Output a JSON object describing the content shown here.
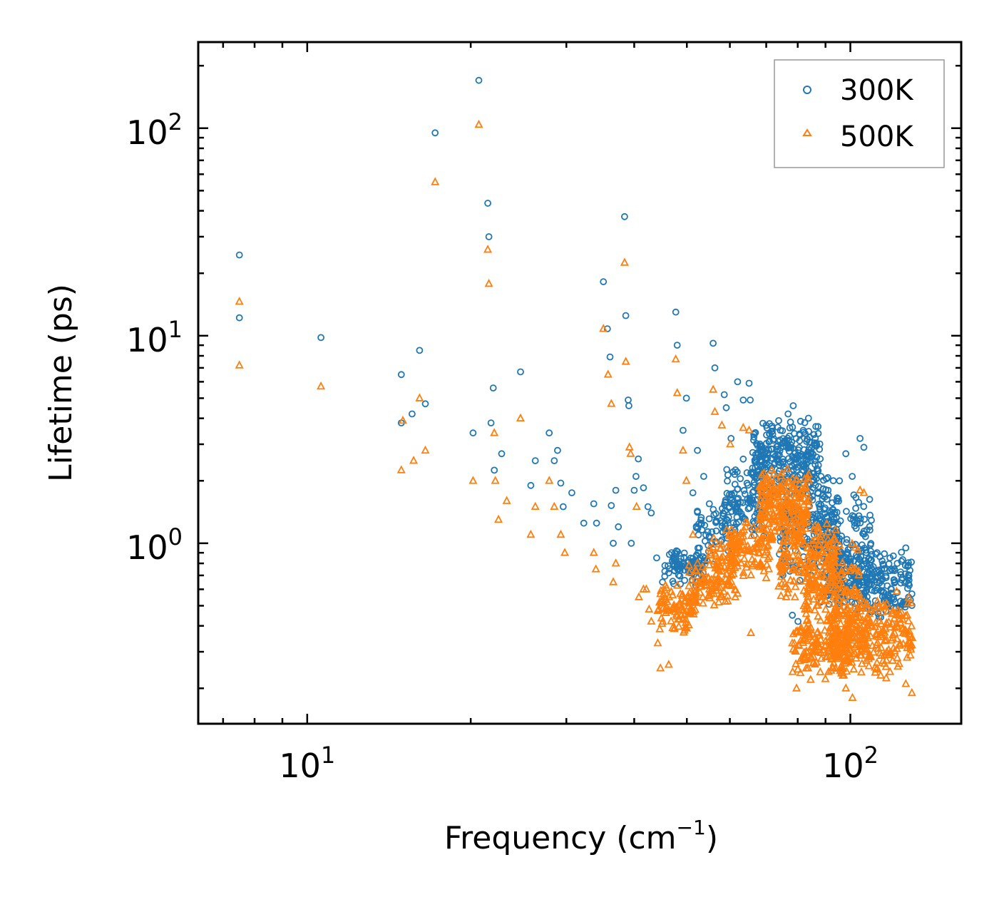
{
  "chart_data": {
    "type": "scatter",
    "x_scale": "log",
    "y_scale": "log",
    "xlabel": "Frequency (cm",
    "xlabel_sup": "−1",
    "xlabel_suffix": ")",
    "ylabel": "Lifetime (ps)",
    "xlim": [
      6.3,
      160
    ],
    "ylim": [
      0.135,
      260
    ],
    "x_ticks": [
      {
        "value": 10,
        "base": "10",
        "exp": "1"
      },
      {
        "value": 100,
        "base": "10",
        "exp": "2"
      }
    ],
    "y_ticks": [
      {
        "value": 1,
        "base": "10",
        "exp": "0"
      },
      {
        "value": 10,
        "base": "10",
        "exp": "1"
      },
      {
        "value": 100,
        "base": "10",
        "exp": "2"
      }
    ],
    "legend_position": "top-right",
    "series": [
      {
        "name": "300K",
        "marker": "circle",
        "color": "#1f77b4",
        "points": [
          [
            7.5,
            24.5
          ],
          [
            7.5,
            12.2
          ],
          [
            10.6,
            9.8
          ],
          [
            14.9,
            6.5
          ],
          [
            14.9,
            3.8
          ],
          [
            15.6,
            4.2
          ],
          [
            16.1,
            8.5
          ],
          [
            16.5,
            4.7
          ],
          [
            17.2,
            95
          ],
          [
            20.2,
            3.4
          ],
          [
            20.7,
            170
          ],
          [
            21.5,
            43.5
          ],
          [
            21.6,
            30
          ],
          [
            21.8,
            3.8
          ],
          [
            22.0,
            5.6
          ],
          [
            22.1,
            2.25
          ],
          [
            22.8,
            2.7
          ],
          [
            24.7,
            6.7
          ],
          [
            25.8,
            1.9
          ],
          [
            26.3,
            2.5
          ],
          [
            27.9,
            3.4
          ],
          [
            28.5,
            2.5
          ],
          [
            28.9,
            2.8
          ],
          [
            29.3,
            1.95
          ],
          [
            29.6,
            1.5
          ],
          [
            30.7,
            1.75
          ],
          [
            32.3,
            1.25
          ],
          [
            33.7,
            1.55
          ],
          [
            34.1,
            1.25
          ],
          [
            35.1,
            18.2
          ],
          [
            35.7,
            10.8
          ],
          [
            36.1,
            7.9
          ],
          [
            36.3,
            1.52
          ],
          [
            36.6,
            1.0
          ],
          [
            37.0,
            1.8
          ],
          [
            37.4,
            1.2
          ],
          [
            38.4,
            37.5
          ],
          [
            38.6,
            12.5
          ],
          [
            39.0,
            4.9
          ],
          [
            39.1,
            4.6
          ],
          [
            39.5,
            1.0
          ],
          [
            40.0,
            1.8
          ],
          [
            40.3,
            2.1
          ],
          [
            40.7,
            2.55
          ],
          [
            41.6,
            1.85
          ],
          [
            42.4,
            1.5
          ],
          [
            43.0,
            1.4
          ],
          [
            44.0,
            0.85
          ],
          [
            45.1,
            0.65
          ],
          [
            46.3,
            0.72
          ],
          [
            47.7,
            13.0
          ],
          [
            48.0,
            9.0
          ],
          [
            49.2,
            3.5
          ],
          [
            49.9,
            5.0
          ],
          [
            51.3,
            1.75
          ],
          [
            52.3,
            2.8
          ],
          [
            53.7,
            2.1
          ],
          [
            55.0,
            1.55
          ],
          [
            55.9,
            9.2
          ],
          [
            56.3,
            7.0
          ],
          [
            58.6,
            5.2
          ],
          [
            59.1,
            4.5
          ],
          [
            60.3,
            3.2
          ],
          [
            62.0,
            6.0
          ],
          [
            63.5,
            4.9
          ],
          [
            65.1,
            5.9
          ],
          [
            65.4,
            4.9
          ],
          [
            67.7,
            2.7
          ],
          [
            70.0,
            3.7
          ],
          [
            73.8,
            3.9
          ],
          [
            76.8,
            4.2
          ],
          [
            78.5,
            4.6
          ],
          [
            79.5,
            3.2
          ],
          [
            81.9,
            3.5
          ],
          [
            84.5,
            2.5
          ],
          [
            86.7,
            2.6
          ],
          [
            88.3,
            2.1
          ],
          [
            91.0,
            1.8
          ],
          [
            95.5,
            2.0
          ],
          [
            98.1,
            2.7
          ],
          [
            100.8,
            2.1
          ],
          [
            104.2,
            3.2
          ],
          [
            105.9,
            2.9
          ],
          [
            112.0,
            0.9
          ],
          [
            118.3,
            0.85
          ],
          [
            122.0,
            0.8
          ],
          [
            126.5,
            0.95
          ],
          [
            129.8,
            0.57
          ],
          [
            78.2,
            0.45
          ],
          [
            80.1,
            0.42
          ]
        ],
        "clusters": [
          {
            "x": [
              45.5,
              54.0
            ],
            "y": [
              0.6,
              1.0
            ],
            "count": 90
          },
          {
            "x": [
              52.0,
              62.0
            ],
            "y": [
              0.75,
              1.8
            ],
            "count": 70
          },
          {
            "x": [
              58.0,
              70.0
            ],
            "y": [
              1.0,
              2.6
            ],
            "count": 110
          },
          {
            "x": [
              66.0,
              88.0
            ],
            "y": [
              1.6,
              4.2
            ],
            "count": 260
          },
          {
            "x": [
              74.0,
              96.0
            ],
            "y": [
              0.6,
              2.4
            ],
            "count": 180
          },
          {
            "x": [
              84.0,
              110.0
            ],
            "y": [
              0.5,
              1.8
            ],
            "count": 160
          },
          {
            "x": [
              90.0,
              130.0
            ],
            "y": [
              0.42,
              0.95
            ],
            "count": 260
          }
        ]
      },
      {
        "name": "500K",
        "marker": "triangle",
        "color": "#ff7f0e",
        "points": [
          [
            7.5,
            14.6
          ],
          [
            7.5,
            7.2
          ],
          [
            10.6,
            5.7
          ],
          [
            14.9,
            2.25
          ],
          [
            15.0,
            3.9
          ],
          [
            15.7,
            2.5
          ],
          [
            16.1,
            5.0
          ],
          [
            16.5,
            2.8
          ],
          [
            17.2,
            55
          ],
          [
            20.2,
            2.0
          ],
          [
            20.7,
            104
          ],
          [
            21.5,
            26
          ],
          [
            21.6,
            17.8
          ],
          [
            22.1,
            3.4
          ],
          [
            22.2,
            2.0
          ],
          [
            22.5,
            1.3
          ],
          [
            23.3,
            1.6
          ],
          [
            24.7,
            4.0
          ],
          [
            25.8,
            1.1
          ],
          [
            26.3,
            1.5
          ],
          [
            27.9,
            2.0
          ],
          [
            28.5,
            1.5
          ],
          [
            29.3,
            1.1
          ],
          [
            29.8,
            0.9
          ],
          [
            33.7,
            0.9
          ],
          [
            34.0,
            0.75
          ],
          [
            35.1,
            10.8
          ],
          [
            35.8,
            6.5
          ],
          [
            36.3,
            4.7
          ],
          [
            36.6,
            0.65
          ],
          [
            37.0,
            0.8
          ],
          [
            38.4,
            22.5
          ],
          [
            38.6,
            7.5
          ],
          [
            39.2,
            2.9
          ],
          [
            39.4,
            2.7
          ],
          [
            40.4,
            1.5
          ],
          [
            40.8,
            0.55
          ],
          [
            41.6,
            0.6
          ],
          [
            42.1,
            0.6
          ],
          [
            42.6,
            0.48
          ],
          [
            43.0,
            0.42
          ],
          [
            44.2,
            0.33
          ],
          [
            44.7,
            0.25
          ],
          [
            45.6,
            0.55
          ],
          [
            46.3,
            0.26
          ],
          [
            47.7,
            7.7
          ],
          [
            48.0,
            5.3
          ],
          [
            49.2,
            2.8
          ],
          [
            49.9,
            2.0
          ],
          [
            51.3,
            1.1
          ],
          [
            52.3,
            0.8
          ],
          [
            53.7,
            0.68
          ],
          [
            55.0,
            0.6
          ],
          [
            55.9,
            5.5
          ],
          [
            56.3,
            4.3
          ],
          [
            58.0,
            3.7
          ],
          [
            60.1,
            3.0
          ],
          [
            61.4,
            0.55
          ],
          [
            63.5,
            3.6
          ],
          [
            65.1,
            3.5
          ],
          [
            65.6,
            0.37
          ],
          [
            67.7,
            0.9
          ],
          [
            70.0,
            0.68
          ],
          [
            73.8,
            0.62
          ],
          [
            76.2,
            0.55
          ],
          [
            78.3,
            0.24
          ],
          [
            79.6,
            0.2
          ],
          [
            81.9,
            0.28
          ],
          [
            84.5,
            0.22
          ],
          [
            86.7,
            0.5
          ],
          [
            89.2,
            0.6
          ],
          [
            92.2,
            0.75
          ],
          [
            95.5,
            0.5
          ],
          [
            98.1,
            0.2
          ],
          [
            100.9,
            0.18
          ],
          [
            104.2,
            1.8
          ],
          [
            105.9,
            1.75
          ],
          [
            112.0,
            0.25
          ],
          [
            118.3,
            0.24
          ],
          [
            122.0,
            0.28
          ],
          [
            126.5,
            0.21
          ],
          [
            129.8,
            0.19
          ],
          [
            130.0,
            0.35
          ]
        ],
        "clusters": [
          {
            "x": [
              44.0,
              52.0
            ],
            "y": [
              0.36,
              0.65
            ],
            "count": 90
          },
          {
            "x": [
              50.0,
              60.0
            ],
            "y": [
              0.45,
              0.9
            ],
            "count": 70
          },
          {
            "x": [
              55.0,
              62.0
            ],
            "y": [
              0.55,
              1.2
            ],
            "count": 70
          },
          {
            "x": [
              60.0,
              72.0
            ],
            "y": [
              0.65,
              1.4
            ],
            "count": 100
          },
          {
            "x": [
              68.0,
              84.0
            ],
            "y": [
              0.95,
              2.4
            ],
            "count": 230
          },
          {
            "x": [
              74.0,
              94.0
            ],
            "y": [
              0.5,
              1.4
            ],
            "count": 150
          },
          {
            "x": [
              82.0,
              104.0
            ],
            "y": [
              0.3,
              1.1
            ],
            "count": 160
          },
          {
            "x": [
              78.0,
              100.0
            ],
            "y": [
              0.22,
              0.45
            ],
            "count": 150
          },
          {
            "x": [
              92.0,
              130.0
            ],
            "y": [
              0.22,
              0.6
            ],
            "count": 300
          }
        ]
      }
    ]
  }
}
